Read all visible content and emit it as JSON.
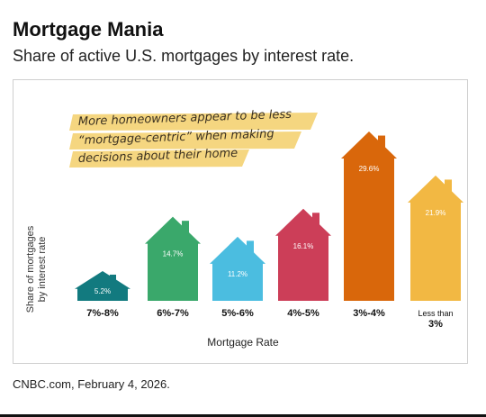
{
  "header": {
    "title": "Mortgage Mania",
    "subtitle": "Share of active U.S. mortgages by interest rate."
  },
  "source": "CNBC.com, February 4, 2026.",
  "annotation": {
    "lines": [
      "More homeowners appear to be less",
      "“mortgage-centric” when making",
      "decisions about their home"
    ],
    "highlight_color": "#f3cf6a"
  },
  "chart_data": {
    "type": "bar",
    "mark_shape": "house",
    "categories": [
      "7%-8%",
      "6%-7%",
      "5%-6%",
      "4%-5%",
      "3%-4%",
      "Less than 3%"
    ],
    "category_labels": [
      [
        "7%-8%"
      ],
      [
        "6%-7%"
      ],
      [
        "5%-6%"
      ],
      [
        "4%-5%"
      ],
      [
        "3%-4%"
      ],
      [
        "Less than",
        "3%"
      ]
    ],
    "values": [
      5.2,
      14.7,
      11.2,
      16.1,
      29.6,
      21.9
    ],
    "data_labels": [
      "5.2%",
      "14.7%",
      "11.2%",
      "16.1%",
      "29.6%",
      "21.9%"
    ],
    "colors": [
      "#127a7f",
      "#3aa86b",
      "#4bbde0",
      "#cc3e58",
      "#d9670b",
      "#f2b843"
    ],
    "xlabel": "Mortgage Rate",
    "ylabel": [
      "Share of mortgages",
      "by interest rate"
    ],
    "ylim": [
      0,
      30
    ],
    "grid": false,
    "legend": "none"
  }
}
